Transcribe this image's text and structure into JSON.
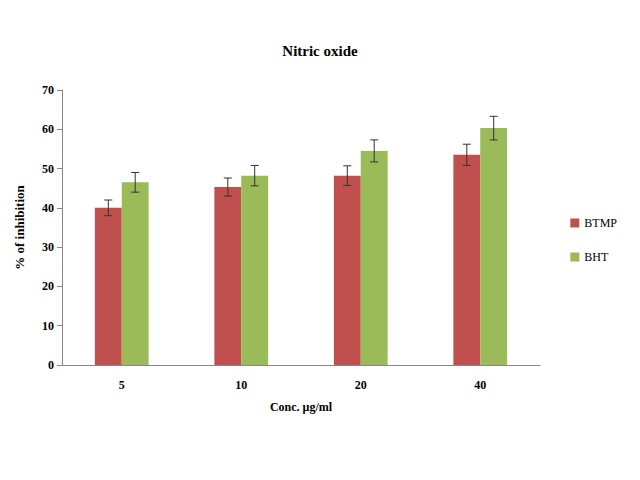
{
  "chart_data": {
    "type": "bar",
    "title": "Nitric oxide",
    "x_label": "Conc. µg/ml",
    "y_label": "% of inhibition",
    "categories": [
      "5",
      "10",
      "20",
      "40"
    ],
    "series": [
      {
        "name": "BTMP",
        "color": "#c0504d",
        "values": [
          40,
          45.3,
          48.2,
          53.5
        ],
        "error": [
          2,
          2.3,
          2.5,
          2.7
        ]
      },
      {
        "name": "BHT",
        "color": "#9bbb59",
        "values": [
          46.5,
          48.2,
          54.5,
          60.3
        ],
        "error": [
          2.5,
          2.6,
          2.8,
          3
        ]
      }
    ],
    "ylim": [
      0,
      70
    ],
    "yticks": [
      0,
      10,
      20,
      30,
      40,
      50,
      60,
      70
    ],
    "grid": false,
    "legend": "right"
  }
}
